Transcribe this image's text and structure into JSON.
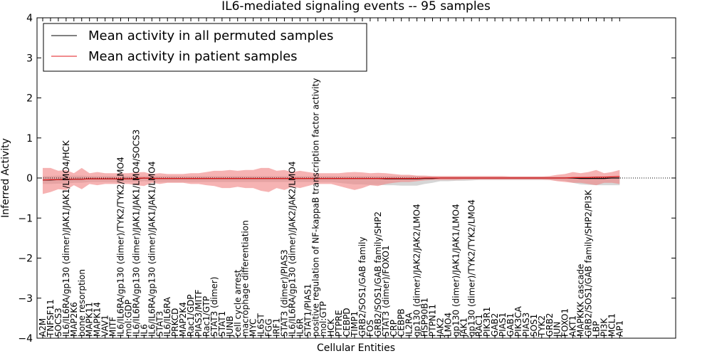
{
  "chart_data": {
    "type": "line",
    "title": "IL6-mediated signaling events -- 95 samples",
    "xlabel": "Cellular Entities",
    "ylabel": "Inferred Activity",
    "ylim": [
      -4,
      4
    ],
    "yticks": [
      -4,
      -3,
      -2,
      -1,
      0,
      1,
      2,
      3,
      4
    ],
    "legend_position": "top-left",
    "colors": {
      "permuted": "#000000",
      "patient": "#e31a1c",
      "patient_band": "#f08080",
      "permuted_band": "#c8c8c8"
    },
    "categories": [
      "A2M",
      "TNFSF11",
      "SOCS3",
      "IL6/IL6RA/gp130 (dimer)/JAK1/JAK1/LMO4/HCK",
      "MAP2K6",
      "bone resorption",
      "MAPK11",
      "MAPK14",
      "VAV1",
      "MITF",
      "IL6/IL6RA/gp130 (dimer)/TYK2/TYK2/LMO4",
      "mol:GDP",
      "IL6/IL6RA/gp130 (dimer)/JAK1/JAK1/LMO4/SOCS3",
      "IL6",
      "IL6/IL6RA/gp130 (dimer)/JAK1/JAK1/LMO4",
      "STAT3",
      "IL6/IL6RA",
      "PRKCD",
      "MAP2K4",
      "Rac1/GDP",
      "PIAS3/MITF",
      "Rac1/GTP",
      "STAT3 (dimer)",
      "STAT1",
      "JUNB",
      "cell cycle arrest",
      "macrophage differentiation",
      "MYC",
      "IL6ST",
      "FGG",
      "IRF1",
      "STAT3 (dimer)/PIAS3",
      "IL6/IL6RA/gp130 (dimer)/JAK2/JAK2/LMO4",
      "IL6R",
      "STAT1/PIAS1",
      "positive regulation of NF-kappaB transcription factor activity",
      "mol:GTP",
      "HCK",
      "PTPRE",
      "CEBPD",
      "TIMP1",
      "GRB2/SOS1/GAB family",
      "FOS",
      "GRB2/SOS1/GAB family/SHP2",
      "STAT3 (dimer)/FOXO1",
      "CRP",
      "CEBPB",
      "IL2RA",
      "gp130 (dimer)/JAK2/JAK2/LMO4",
      "HSP90B1",
      "PTPN11",
      "JAK2",
      "LMO4",
      "gp130 (dimer)/JAK1/JAK1/LMO4",
      "JAK1",
      "gp130 (dimer)/TYK2/TYK2/LMO4",
      "RAC1",
      "PIK3R1",
      "GAB2",
      "PIAS1",
      "GAB1",
      "PIK3CA",
      "PIAS3",
      "SOS1",
      "TYK2",
      "GRB2",
      "JUN",
      "FOXO1",
      "AKT1",
      "MAPKKK cascade",
      "GRB2/SOS1/GAB family/SHP2/PI3K",
      "LBP",
      "PI3K",
      "MCL1",
      "AP1"
    ],
    "series": [
      {
        "name": "Mean activity in all permuted samples",
        "color": "#000000",
        "values": [
          -0.05,
          -0.05,
          -0.04,
          -0.04,
          -0.03,
          -0.03,
          -0.02,
          -0.02,
          -0.02,
          -0.02,
          -0.02,
          -0.02,
          -0.02,
          0.0,
          -0.01,
          -0.01,
          -0.01,
          -0.01,
          -0.01,
          -0.01,
          -0.01,
          -0.01,
          -0.01,
          -0.01,
          -0.01,
          -0.01,
          -0.01,
          -0.01,
          -0.01,
          -0.01,
          -0.01,
          -0.01,
          -0.01,
          -0.01,
          -0.01,
          -0.01,
          -0.01,
          -0.01,
          -0.01,
          -0.01,
          -0.01,
          -0.01,
          -0.01,
          -0.01,
          -0.02,
          -0.02,
          -0.02,
          -0.02,
          -0.02,
          -0.01,
          -0.01,
          0.0,
          0.0,
          0.0,
          0.0,
          0.0,
          0.0,
          0.0,
          0.0,
          0.0,
          0.0,
          0.0,
          0.0,
          0.0,
          0.0,
          0.0,
          0.0,
          0.0,
          0.0,
          -0.01,
          -0.01,
          -0.01,
          -0.01,
          0.0,
          0.0
        ],
        "band_upper": [
          0.05,
          0.05,
          0.06,
          0.06,
          0.06,
          0.06,
          0.05,
          0.05,
          0.05,
          0.05,
          0.05,
          0.05,
          0.05,
          0.05,
          0.05,
          0.05,
          0.05,
          0.05,
          0.05,
          0.05,
          0.05,
          0.05,
          0.05,
          0.05,
          0.05,
          0.05,
          0.05,
          0.05,
          0.05,
          0.05,
          0.05,
          0.05,
          0.05,
          0.05,
          0.05,
          0.05,
          0.05,
          0.05,
          0.05,
          0.05,
          0.05,
          0.05,
          0.05,
          0.05,
          0.05,
          0.05,
          0.05,
          0.05,
          0.05,
          0.04,
          0.04,
          0.03,
          0.03,
          0.03,
          0.03,
          0.03,
          0.03,
          0.03,
          0.03,
          0.03,
          0.03,
          0.03,
          0.03,
          0.03,
          0.03,
          0.03,
          0.03,
          0.03,
          0.03,
          0.04,
          0.05,
          0.05,
          0.05,
          0.05,
          0.05
        ],
        "band_lower": [
          -0.15,
          -0.15,
          -0.14,
          -0.14,
          -0.12,
          -0.12,
          -0.1,
          -0.1,
          -0.1,
          -0.1,
          -0.1,
          -0.1,
          -0.1,
          -0.08,
          -0.1,
          -0.1,
          -0.1,
          -0.1,
          -0.1,
          -0.1,
          -0.1,
          -0.1,
          -0.1,
          -0.1,
          -0.1,
          -0.1,
          -0.1,
          -0.1,
          -0.1,
          -0.1,
          -0.1,
          -0.1,
          -0.1,
          -0.1,
          -0.1,
          -0.1,
          -0.1,
          -0.1,
          -0.12,
          -0.14,
          -0.16,
          -0.16,
          -0.17,
          -0.17,
          -0.18,
          -0.18,
          -0.19,
          -0.19,
          -0.19,
          -0.15,
          -0.12,
          -0.08,
          -0.08,
          -0.07,
          -0.07,
          -0.06,
          -0.05,
          -0.05,
          -0.05,
          -0.05,
          -0.05,
          -0.05,
          -0.05,
          -0.05,
          -0.05,
          -0.05,
          -0.06,
          -0.07,
          -0.12,
          -0.16,
          -0.17,
          -0.18,
          -0.18,
          -0.18,
          -0.18
        ]
      },
      {
        "name": "Mean activity in patient samples",
        "color": "#e31a1c",
        "values": [
          -0.05,
          -0.04,
          -0.04,
          -0.03,
          -0.03,
          -0.03,
          -0.02,
          -0.02,
          -0.02,
          -0.02,
          -0.02,
          -0.02,
          -0.01,
          0.0,
          -0.01,
          -0.01,
          -0.01,
          -0.01,
          -0.01,
          -0.01,
          -0.01,
          -0.01,
          -0.01,
          -0.01,
          -0.01,
          -0.01,
          -0.01,
          -0.01,
          -0.01,
          -0.01,
          -0.01,
          -0.01,
          -0.01,
          -0.01,
          -0.01,
          -0.01,
          -0.01,
          -0.01,
          -0.01,
          -0.01,
          -0.01,
          -0.01,
          -0.01,
          -0.01,
          -0.01,
          -0.01,
          -0.01,
          -0.01,
          -0.01,
          0.0,
          0.0,
          0.0,
          0.0,
          0.0,
          0.0,
          0.0,
          0.0,
          0.0,
          0.0,
          0.0,
          0.0,
          0.0,
          0.0,
          0.0,
          0.0,
          0.0,
          0.0,
          0.0,
          0.01,
          0.01,
          0.01,
          0.02,
          0.02,
          0.03,
          0.04
        ],
        "band_upper": [
          0.25,
          0.25,
          0.18,
          0.2,
          0.12,
          0.25,
          0.12,
          0.15,
          0.12,
          0.12,
          0.12,
          0.12,
          0.14,
          0.15,
          0.1,
          0.12,
          0.1,
          0.1,
          0.1,
          0.12,
          0.12,
          0.15,
          0.18,
          0.18,
          0.2,
          0.18,
          0.2,
          0.2,
          0.25,
          0.25,
          0.18,
          0.2,
          0.15,
          0.18,
          0.15,
          0.12,
          0.12,
          0.12,
          0.12,
          0.14,
          0.15,
          0.14,
          0.12,
          0.13,
          0.12,
          0.1,
          0.08,
          0.08,
          0.06,
          0.06,
          0.05,
          0.05,
          0.05,
          0.05,
          0.05,
          0.05,
          0.05,
          0.05,
          0.05,
          0.05,
          0.04,
          0.04,
          0.04,
          0.04,
          0.04,
          0.05,
          0.08,
          0.1,
          0.15,
          0.12,
          0.15,
          0.2,
          0.12,
          0.15,
          0.2
        ],
        "band_lower": [
          -0.4,
          -0.35,
          -0.28,
          -0.3,
          -0.18,
          -0.28,
          -0.15,
          -0.18,
          -0.15,
          -0.15,
          -0.15,
          -0.15,
          -0.18,
          -0.2,
          -0.12,
          -0.15,
          -0.12,
          -0.12,
          -0.12,
          -0.15,
          -0.15,
          -0.18,
          -0.2,
          -0.25,
          -0.25,
          -0.22,
          -0.25,
          -0.25,
          -0.32,
          -0.35,
          -0.25,
          -0.3,
          -0.22,
          -0.25,
          -0.2,
          -0.15,
          -0.15,
          -0.15,
          -0.2,
          -0.25,
          -0.3,
          -0.25,
          -0.18,
          -0.2,
          -0.15,
          -0.12,
          -0.1,
          -0.1,
          -0.08,
          -0.06,
          -0.05,
          -0.05,
          -0.05,
          -0.05,
          -0.04,
          -0.04,
          -0.04,
          -0.04,
          -0.04,
          -0.04,
          -0.04,
          -0.04,
          -0.04,
          -0.04,
          -0.04,
          -0.05,
          -0.08,
          -0.1,
          -0.12,
          -0.12,
          -0.15,
          -0.18,
          -0.12,
          -0.12,
          -0.15
        ]
      }
    ]
  }
}
